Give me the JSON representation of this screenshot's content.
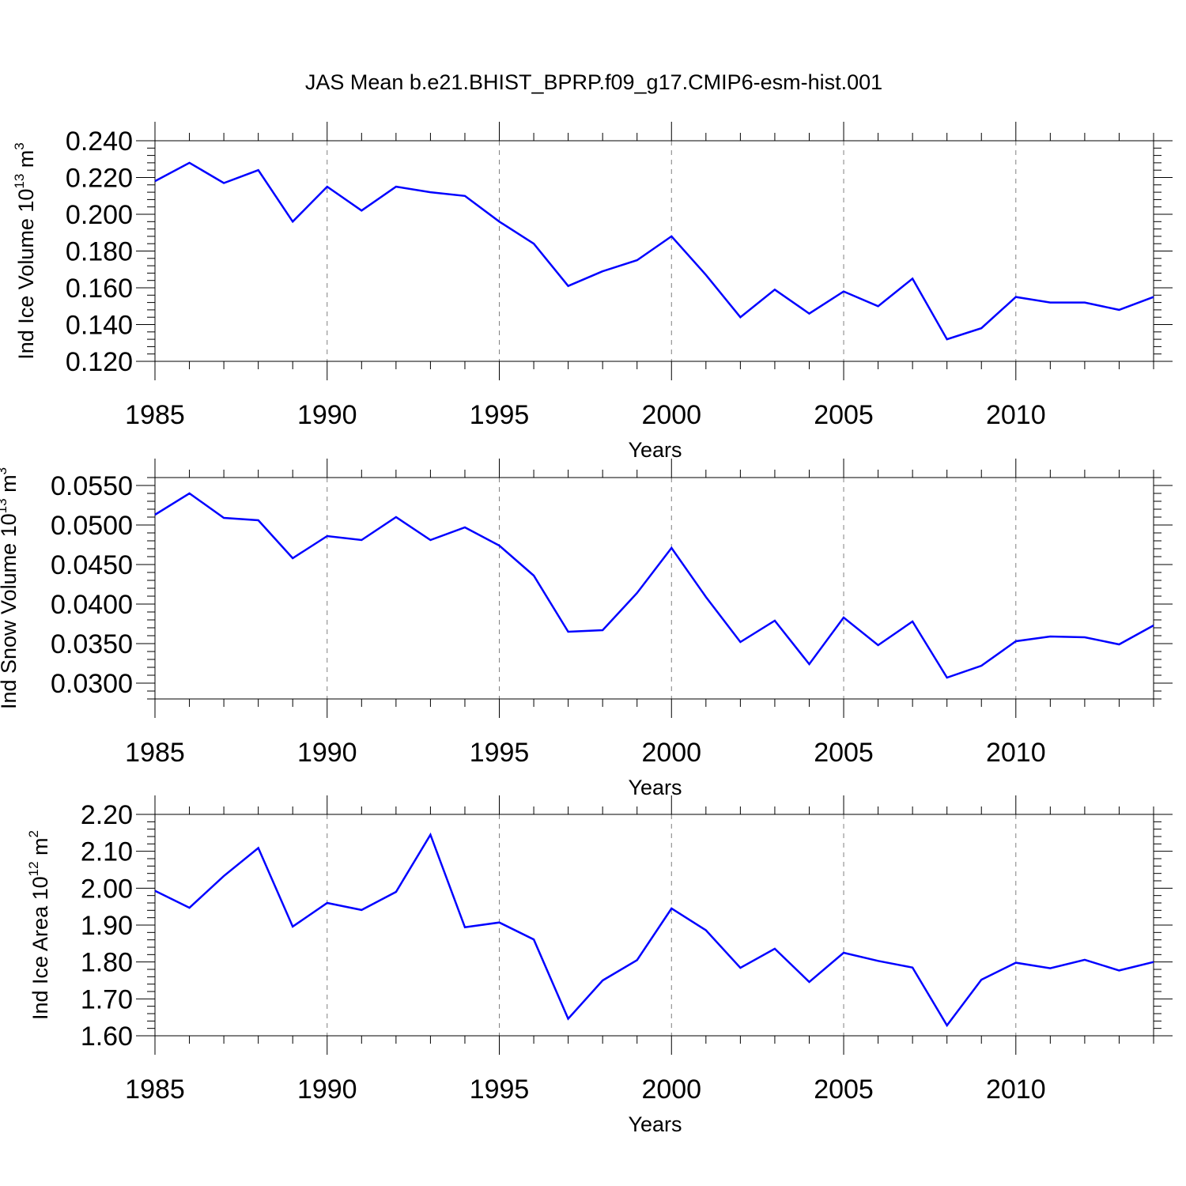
{
  "title": "JAS Mean b.e21.BHIST_BPRP.f09_g17.CMIP6-esm-hist.001",
  "colors": {
    "line": "#0000ff",
    "axis": "#000000",
    "grid": "#808080"
  },
  "chart_data": [
    {
      "type": "line",
      "xlabel": "Years",
      "ylabel": {
        "text": "Ind Ice Volume 10",
        "exponent": "13",
        "unit": " m",
        "unit_exponent": "3"
      },
      "xlim": [
        1985,
        2014
      ],
      "ylim": [
        0.12,
        0.24
      ],
      "x_ticks": [
        "1985",
        "1990",
        "1995",
        "2000",
        "2005",
        "2010"
      ],
      "y_ticks": [
        "0.120",
        "0.140",
        "0.160",
        "0.180",
        "0.200",
        "0.220",
        "0.240"
      ],
      "grid": "vertical dashed at major x ticks",
      "x": [
        1985,
        1986,
        1987,
        1988,
        1989,
        1990,
        1991,
        1992,
        1993,
        1994,
        1995,
        1996,
        1997,
        1998,
        1999,
        2000,
        2001,
        2002,
        2003,
        2004,
        2005,
        2006,
        2007,
        2008,
        2009,
        2010,
        2011,
        2012,
        2013,
        2014
      ],
      "values": [
        0.218,
        0.228,
        0.217,
        0.224,
        0.196,
        0.215,
        0.202,
        0.215,
        0.212,
        0.21,
        0.196,
        0.184,
        0.161,
        0.169,
        0.175,
        0.188,
        0.167,
        0.144,
        0.159,
        0.146,
        0.158,
        0.15,
        0.165,
        0.132,
        0.138,
        0.155,
        0.152,
        0.152,
        0.148,
        0.155
      ]
    },
    {
      "type": "line",
      "xlabel": "Years",
      "ylabel": {
        "text": "Ind Snow Volume 10",
        "exponent": "13",
        "unit": " m",
        "unit_exponent": "3"
      },
      "xlim": [
        1985,
        2014
      ],
      "ylim": [
        0.028,
        0.056
      ],
      "x_ticks": [
        "1985",
        "1990",
        "1995",
        "2000",
        "2005",
        "2010"
      ],
      "y_ticks": [
        "0.0300",
        "0.0350",
        "0.0400",
        "0.0450",
        "0.0500",
        "0.0550"
      ],
      "grid": "vertical dashed at major x ticks",
      "x": [
        1985,
        1986,
        1987,
        1988,
        1989,
        1990,
        1991,
        1992,
        1993,
        1994,
        1995,
        1996,
        1997,
        1998,
        1999,
        2000,
        2001,
        2002,
        2003,
        2004,
        2005,
        2006,
        2007,
        2008,
        2009,
        2010,
        2011,
        2012,
        2013,
        2014
      ],
      "values": [
        0.0513,
        0.054,
        0.0509,
        0.0506,
        0.0458,
        0.0486,
        0.0481,
        0.051,
        0.0481,
        0.0497,
        0.0474,
        0.0436,
        0.0365,
        0.0367,
        0.0414,
        0.0471,
        0.0409,
        0.0352,
        0.0379,
        0.0324,
        0.0383,
        0.0348,
        0.0378,
        0.0307,
        0.0322,
        0.0353,
        0.0359,
        0.0358,
        0.0349,
        0.0373
      ]
    },
    {
      "type": "line",
      "xlabel": "Years",
      "ylabel": {
        "text": "Ind Ice Area 10",
        "exponent": "12",
        "unit": " m",
        "unit_exponent": "2"
      },
      "xlim": [
        1985,
        2014
      ],
      "ylim": [
        1.6,
        2.2
      ],
      "x_ticks": [
        "1985",
        "1990",
        "1995",
        "2000",
        "2005",
        "2010"
      ],
      "y_ticks": [
        "1.60",
        "1.70",
        "1.80",
        "1.90",
        "2.00",
        "2.10",
        "2.20"
      ],
      "grid": "vertical dashed at major x ticks",
      "x": [
        1985,
        1986,
        1987,
        1988,
        1989,
        1990,
        1991,
        1992,
        1993,
        1994,
        1995,
        1996,
        1997,
        1998,
        1999,
        2000,
        2001,
        2002,
        2003,
        2004,
        2005,
        2006,
        2007,
        2008,
        2009,
        2010,
        2011,
        2012,
        2013,
        2014
      ],
      "values": [
        1.993,
        1.947,
        2.033,
        2.109,
        1.896,
        1.96,
        1.941,
        1.99,
        2.145,
        1.894,
        1.907,
        1.861,
        1.646,
        1.75,
        1.805,
        1.945,
        1.886,
        1.784,
        1.836,
        1.746,
        1.825,
        1.803,
        1.785,
        1.628,
        1.752,
        1.798,
        1.783,
        1.806,
        1.777,
        1.8
      ]
    }
  ]
}
